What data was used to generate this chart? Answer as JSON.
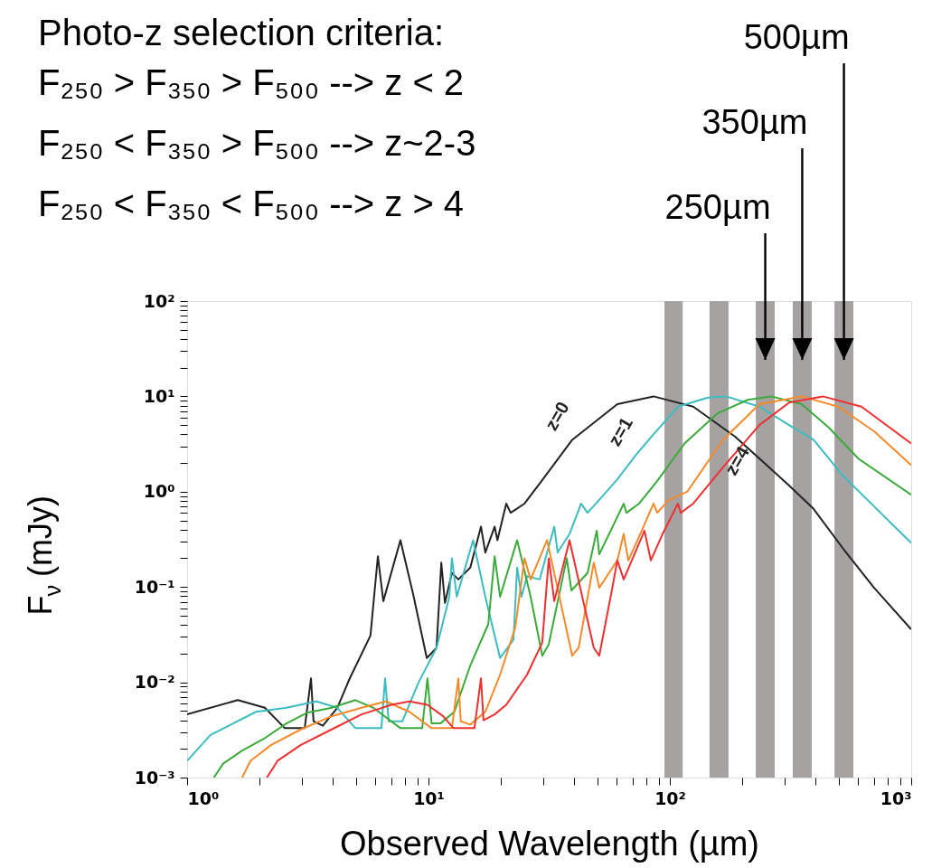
{
  "chart_data": {
    "type": "line",
    "title": "Photo-z selection criteria:",
    "xlabel": "Observed Wavelength (µm)",
    "ylabel": "F$_{ν}$ (mJy)",
    "log": "xy",
    "xlim": [
      1,
      1000
    ],
    "ylim": [
      0.001,
      100
    ],
    "xticks": [
      {
        "value": 1,
        "label": "10⁰"
      },
      {
        "value": 2,
        "label": null
      },
      {
        "value": 3,
        "label": null
      },
      {
        "value": 4,
        "label": null
      },
      {
        "value": 5,
        "label": null
      },
      {
        "value": 6,
        "label": null
      },
      {
        "value": 7,
        "label": null
      },
      {
        "value": 8,
        "label": null
      },
      {
        "value": 9,
        "label": null
      },
      {
        "value": 10,
        "label": "10¹"
      },
      {
        "value": 20,
        "label": null
      },
      {
        "value": 30,
        "label": null
      },
      {
        "value": 40,
        "label": null
      },
      {
        "value": 50,
        "label": null
      },
      {
        "value": 60,
        "label": null
      },
      {
        "value": 70,
        "label": null
      },
      {
        "value": 80,
        "label": null
      },
      {
        "value": 90,
        "label": null
      },
      {
        "value": 100,
        "label": "10²"
      },
      {
        "value": 200,
        "label": null
      },
      {
        "value": 300,
        "label": null
      },
      {
        "value": 400,
        "label": null
      },
      {
        "value": 500,
        "label": null
      },
      {
        "value": 600,
        "label": null
      },
      {
        "value": 700,
        "label": null
      },
      {
        "value": 800,
        "label": null
      },
      {
        "value": 900,
        "label": null
      },
      {
        "value": 1000,
        "label": "10³"
      }
    ],
    "yticks": [
      {
        "value": 0.001,
        "label": "10⁻³"
      },
      {
        "value": 0.002,
        "label": null
      },
      {
        "value": 0.003,
        "label": null
      },
      {
        "value": 0.004,
        "label": null
      },
      {
        "value": 0.005,
        "label": null
      },
      {
        "value": 0.006,
        "label": null
      },
      {
        "value": 0.007,
        "label": null
      },
      {
        "value": 0.008,
        "label": null
      },
      {
        "value": 0.009,
        "label": null
      },
      {
        "value": 0.01,
        "label": "10⁻²"
      },
      {
        "value": 0.02,
        "label": null
      },
      {
        "value": 0.03,
        "label": null
      },
      {
        "value": 0.04,
        "label": null
      },
      {
        "value": 0.05,
        "label": null
      },
      {
        "value": 0.06,
        "label": null
      },
      {
        "value": 0.07,
        "label": null
      },
      {
        "value": 0.08,
        "label": null
      },
      {
        "value": 0.09,
        "label": null
      },
      {
        "value": 0.1,
        "label": "10⁻¹"
      },
      {
        "value": 0.2,
        "label": null
      },
      {
        "value": 0.3,
        "label": null
      },
      {
        "value": 0.4,
        "label": null
      },
      {
        "value": 0.5,
        "label": null
      },
      {
        "value": 0.6,
        "label": null
      },
      {
        "value": 0.7,
        "label": null
      },
      {
        "value": 0.8,
        "label": null
      },
      {
        "value": 0.9,
        "label": null
      },
      {
        "value": 1,
        "label": "10⁰"
      },
      {
        "value": 2,
        "label": null
      },
      {
        "value": 3,
        "label": null
      },
      {
        "value": 4,
        "label": null
      },
      {
        "value": 5,
        "label": null
      },
      {
        "value": 6,
        "label": null
      },
      {
        "value": 7,
        "label": null
      },
      {
        "value": 8,
        "label": null
      },
      {
        "value": 9,
        "label": null
      },
      {
        "value": 10,
        "label": "10¹"
      },
      {
        "value": 20,
        "label": null
      },
      {
        "value": 30,
        "label": null
      },
      {
        "value": 40,
        "label": null
      },
      {
        "value": 50,
        "label": null
      },
      {
        "value": 60,
        "label": null
      },
      {
        "value": 70,
        "label": null
      },
      {
        "value": 80,
        "label": null
      },
      {
        "value": 90,
        "label": null
      },
      {
        "value": 100,
        "label": "10²"
      }
    ],
    "bands": [
      {
        "axis": "x",
        "from": 95,
        "to": 113,
        "color": "#a6a2a2"
      },
      {
        "axis": "x",
        "from": 146,
        "to": 175,
        "color": "#a6a2a2"
      },
      {
        "axis": "x",
        "from": 227,
        "to": 272,
        "color": "#a6a2a2"
      },
      {
        "axis": "x",
        "from": 323,
        "to": 387,
        "color": "#a6a2a2"
      },
      {
        "axis": "x",
        "from": 481,
        "to": 576,
        "color": "#a6a2a2"
      }
    ],
    "annotations": [
      "F₂₅₀ > F₃₅₀ > F₅₀₀ --> z < 2",
      "F₂₅₀ < F₃₅₀ > F₅₀₀ --> z~2-3",
      "F₂₅₀ < F₃₅₀ < F₅₀₀ --> z > 4",
      "250µm",
      "350µm",
      "500µm"
    ],
    "series": [
      {
        "name": "z=0",
        "color": "#222222",
        "x": [
          1,
          1.62,
          2.1,
          2.54,
          3.07,
          3.26,
          3.34,
          3.65,
          4.19,
          4.72,
          5.75,
          6.17,
          6.5,
          7.65,
          8.64,
          9.84,
          10.8,
          11.3,
          11.7,
          12.5,
          13.3,
          14.9,
          16.5,
          17.2,
          18.8,
          19.3,
          21,
          21.9,
          25,
          30.4,
          39.4,
          60.6,
          85.6,
          125,
          186,
          241,
          312,
          394,
          524,
          702,
          1000
        ],
        "values": [
          0.0046,
          0.0065,
          0.0054,
          0.0033,
          0.0033,
          0.011,
          0.0039,
          0.0035,
          0.0054,
          0.011,
          0.031,
          0.21,
          0.071,
          0.31,
          0.084,
          0.018,
          0.023,
          0.18,
          0.068,
          0.14,
          0.12,
          0.16,
          0.43,
          0.23,
          0.43,
          0.31,
          0.75,
          0.6,
          0.75,
          1.45,
          3.5,
          8.3,
          10,
          7.8,
          3.8,
          2.1,
          1.16,
          0.66,
          0.25,
          0.098,
          0.036
        ]
      },
      {
        "name": "z=1",
        "color": "#3cbcc0",
        "x": [
          1,
          1.25,
          1.93,
          2.58,
          3.43,
          4.19,
          4.98,
          6.38,
          6.61,
          6.84,
          7.8,
          9.1,
          10.8,
          12.2,
          12.5,
          13.1,
          15.3,
          17.2,
          19.8,
          22.5,
          23.3,
          24.3,
          25.6,
          28.9,
          33.2,
          34.3,
          38.4,
          42.9,
          45.6,
          51,
          60.6,
          72.1,
          85.6,
          108,
          144,
          171,
          235,
          312,
          394,
          524,
          702,
          1000
        ],
        "values": [
          0.0015,
          0.0028,
          0.0049,
          0.0054,
          0.0063,
          0.0054,
          0.0033,
          0.0033,
          0.011,
          0.0039,
          0.0039,
          0.01,
          0.023,
          0.079,
          0.2,
          0.079,
          0.31,
          0.079,
          0.018,
          0.028,
          0.16,
          0.079,
          0.13,
          0.12,
          0.43,
          0.23,
          0.36,
          0.75,
          0.6,
          0.82,
          1.35,
          2.4,
          4,
          7.8,
          9.7,
          10,
          7.8,
          5,
          3.5,
          1.45,
          0.7,
          0.29
        ]
      },
      {
        "color": "#3aab3a",
        "x": [
          1.29,
          1.41,
          1.68,
          2.1,
          2.58,
          3.15,
          3.97,
          4.98,
          5.91,
          7.65,
          9.42,
          9.9,
          10.3,
          11.2,
          12.8,
          14.9,
          17.7,
          18.8,
          19.8,
          23.3,
          26.5,
          29.6,
          31.5,
          37.4,
          39.1,
          45.6,
          49.8,
          51,
          64.4,
          66.1,
          74.6,
          88.7,
          115,
          157,
          210,
          263,
          352,
          456,
          607,
          1000
        ],
        "values": [
          0.001,
          0.0014,
          0.0019,
          0.0026,
          0.0037,
          0.0048,
          0.0054,
          0.0065,
          0.0054,
          0.0033,
          0.0033,
          0.011,
          0.0037,
          0.0037,
          0.0049,
          0.015,
          0.041,
          0.21,
          0.079,
          0.31,
          0.079,
          0.019,
          0.025,
          0.2,
          0.092,
          0.14,
          0.39,
          0.22,
          0.75,
          0.6,
          0.75,
          1.3,
          3.2,
          6.6,
          9.2,
          10,
          8.3,
          4.7,
          2.2,
          0.93
        ]
      },
      {
        "color": "#f58a2a",
        "x": [
          1.69,
          1.83,
          2.23,
          2.96,
          3.97,
          5.28,
          6.67,
          8.34,
          10.3,
          12.5,
          13.3,
          13.6,
          14.9,
          17.2,
          19.8,
          22.9,
          25,
          26.5,
          31,
          39.4,
          41.9,
          48.4,
          51,
          60.6,
          64.4,
          67.3,
          76.5,
          85.6,
          88.7,
          99,
          118,
          166,
          235,
          352,
          498,
          702,
          1000
        ],
        "values": [
          0.001,
          0.0015,
          0.0022,
          0.0032,
          0.0044,
          0.0054,
          0.0063,
          0.0049,
          0.0033,
          0.0033,
          0.011,
          0.0039,
          0.0036,
          0.0049,
          0.012,
          0.038,
          0.2,
          0.12,
          0.31,
          0.019,
          0.023,
          0.18,
          0.098,
          0.19,
          0.36,
          0.19,
          0.39,
          0.75,
          0.6,
          0.82,
          1,
          3.5,
          8.3,
          10,
          7.8,
          4.3,
          1.9
        ]
      },
      {
        "name": "z=4",
        "color": "#ee3030",
        "x": [
          2.14,
          2.37,
          2.96,
          3.97,
          5.28,
          7.02,
          8.34,
          9.9,
          11.5,
          12.7,
          15.5,
          16.5,
          16.9,
          18.8,
          21,
          25.6,
          29.6,
          31.5,
          33.2,
          38.4,
          48.4,
          51,
          57.5,
          60.6,
          64.4,
          78.5,
          83.4,
          93.3,
          108,
          111,
          125,
          166,
          235,
          312,
          430,
          622,
          1000
        ],
        "values": [
          0.001,
          0.0015,
          0.0022,
          0.0032,
          0.0046,
          0.0058,
          0.0063,
          0.0058,
          0.0044,
          0.0033,
          0.0033,
          0.011,
          0.004,
          0.0046,
          0.0058,
          0.012,
          0.026,
          0.2,
          0.071,
          0.31,
          0.023,
          0.019,
          0.092,
          0.19,
          0.12,
          0.39,
          0.19,
          0.36,
          0.75,
          0.6,
          0.75,
          1.8,
          5,
          8.6,
          10,
          7.8,
          3.2
        ]
      }
    ]
  }
}
